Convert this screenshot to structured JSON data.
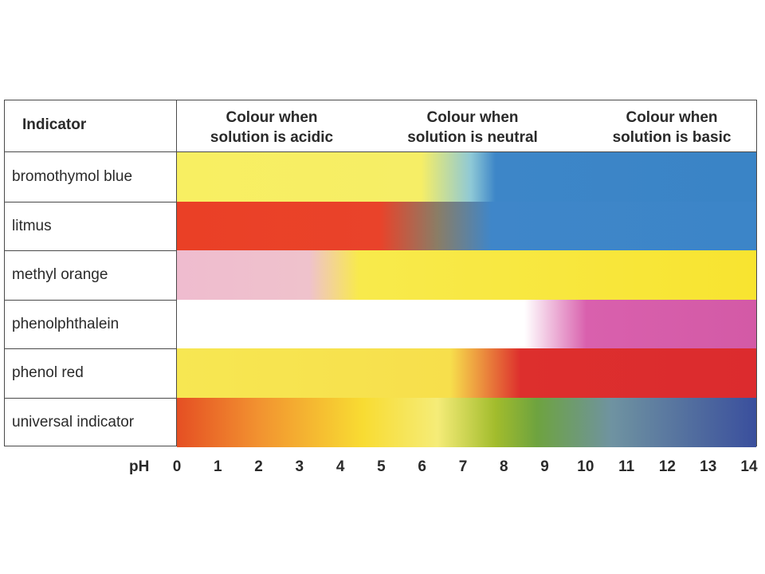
{
  "chart_data": {
    "type": "table",
    "header": {
      "indicator": "Indicator",
      "acidic": [
        "Colour when",
        "solution is acidic"
      ],
      "neutral": [
        "Colour when",
        "solution is neutral"
      ],
      "basic": [
        "Colour when",
        "solution is basic"
      ]
    },
    "rows": [
      {
        "name": "bromothymol blue",
        "stops": [
          {
            "ph": 0,
            "color": "#f8ef62"
          },
          {
            "ph": 5.9,
            "color": "#f6ee66"
          },
          {
            "ph": 7.1,
            "color": "#8fc9d6"
          },
          {
            "ph": 7.7,
            "color": "#3d86c8"
          },
          {
            "ph": 14,
            "color": "#3a84c6"
          }
        ]
      },
      {
        "name": "litmus",
        "stops": [
          {
            "ph": 0,
            "color": "#ea4026"
          },
          {
            "ph": 4.9,
            "color": "#e9432a"
          },
          {
            "ph": 6.3,
            "color": "#8a7d66"
          },
          {
            "ph": 7.6,
            "color": "#3f86c9"
          },
          {
            "ph": 14,
            "color": "#3c85c8"
          }
        ]
      },
      {
        "name": "methyl orange",
        "stops": [
          {
            "ph": 0,
            "color": "#efbccf"
          },
          {
            "ph": 3.2,
            "color": "#efc2cc"
          },
          {
            "ph": 4.4,
            "color": "#f8ea4c"
          },
          {
            "ph": 14,
            "color": "#f8e430"
          }
        ]
      },
      {
        "name": "phenolphthalein",
        "stops": [
          {
            "ph": 0,
            "color": "#ffffff"
          },
          {
            "ph": 8.4,
            "color": "#ffffff"
          },
          {
            "ph": 9.9,
            "color": "#d960ad"
          },
          {
            "ph": 14,
            "color": "#d35aa6"
          }
        ]
      },
      {
        "name": "phenol red",
        "stops": [
          {
            "ph": 0,
            "color": "#f7e752"
          },
          {
            "ph": 6.6,
            "color": "#f7df4c"
          },
          {
            "ph": 8.3,
            "color": "#dd2f2d"
          },
          {
            "ph": 14,
            "color": "#dc2b2e"
          }
        ]
      },
      {
        "name": "universal indicator",
        "stops": [
          {
            "ph": 0,
            "color": "#e54f23"
          },
          {
            "ph": 2.0,
            "color": "#f29330"
          },
          {
            "ph": 4.5,
            "color": "#f8dc32"
          },
          {
            "ph": 6.3,
            "color": "#f5ec78"
          },
          {
            "ph": 7.7,
            "color": "#a2bc2c"
          },
          {
            "ph": 8.7,
            "color": "#6ea33f"
          },
          {
            "ph": 10.5,
            "color": "#6f93a1"
          },
          {
            "ph": 14,
            "color": "#3a4f9d"
          }
        ]
      }
    ],
    "xlabel": "pH",
    "xticks": [
      0,
      1,
      2,
      3,
      4,
      5,
      6,
      7,
      8,
      9,
      10,
      11,
      12,
      13,
      14
    ],
    "xlim": [
      0,
      14
    ]
  }
}
